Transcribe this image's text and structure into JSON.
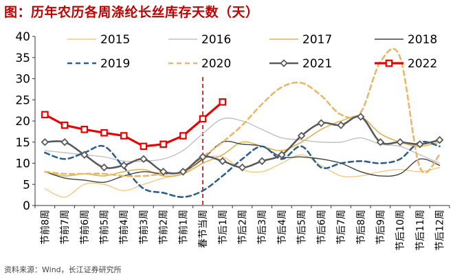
{
  "title": "图：历年农历各周涤纶长丝库存天数（天）",
  "source": "资料来源：Wind，长江证券研究所",
  "colors": {
    "2015": "#f2c982",
    "2016": "#c0c0c0",
    "2017": "#e0b24f",
    "2018": "#404040",
    "2019": "#2e5f8a",
    "2020": "#e8b768",
    "2021": "#595959",
    "2022": "#e60000",
    "marker_line": "#c00000",
    "axis": "#333333",
    "title": "#c00000"
  },
  "chart_data": {
    "type": "line",
    "title": "历年农历各周涤纶长丝库存天数（天）",
    "xlabel": "",
    "ylabel": "",
    "ylim": [
      0,
      40
    ],
    "yticks": [
      0,
      5,
      10,
      15,
      20,
      25,
      30,
      35,
      40
    ],
    "grid": false,
    "legend": "top",
    "categories": [
      "节前8周",
      "节前7周",
      "节前6周",
      "节前5周",
      "节前4周",
      "节前3周",
      "节前2周",
      "节前1周",
      "春节当周",
      "节后1周",
      "节后2周",
      "节后3周",
      "节后4周",
      "节后5周",
      "节后6周",
      "节后7周",
      "节后8周",
      "节后9周",
      "节后10周",
      "节后11周",
      "节后12周"
    ],
    "vertical_marker": {
      "category": "春节当周",
      "style": "dashed"
    },
    "series": [
      {
        "name": "2015",
        "style": "solid",
        "marker": "none",
        "values": [
          4,
          2,
          5,
          5,
          3.5,
          5,
          6.5,
          7.5,
          11,
          11.5,
          8.5,
          8,
          10,
          12,
          9.5,
          7,
          7,
          8,
          8.5,
          8,
          9
        ]
      },
      {
        "name": "2016",
        "style": "solid",
        "marker": "none",
        "values": [
          13,
          12.5,
          12,
          11.5,
          10.5,
          10.5,
          11,
          13,
          17,
          20.5,
          20,
          18,
          16,
          15.5,
          15,
          15,
          16,
          14.5,
          14,
          12,
          10
        ]
      },
      {
        "name": "2017",
        "style": "solid",
        "marker": "none",
        "values": [
          8,
          7,
          7.5,
          7,
          8,
          8.5,
          7,
          7.5,
          10,
          12,
          15,
          14,
          13,
          15,
          18,
          20,
          21,
          17,
          15,
          14,
          15
        ]
      },
      {
        "name": "2018",
        "style": "solid",
        "marker": "none",
        "values": [
          8,
          6.5,
          6,
          5.5,
          7,
          8,
          7.5,
          8,
          11,
          15,
          14.5,
          14,
          11.5,
          11.5,
          11,
          10,
          8,
          7,
          7.5,
          11,
          9.5
        ]
      },
      {
        "name": "2019",
        "style": "dashed",
        "marker": "none",
        "values": [
          12.5,
          11,
          12.5,
          14,
          9,
          4,
          3,
          2,
          3.5,
          7,
          11,
          14,
          11,
          14,
          9,
          10,
          10.5,
          10,
          11,
          15,
          14
        ]
      },
      {
        "name": "2020",
        "style": "dashed",
        "marker": "none",
        "values": [
          8,
          7.5,
          7.5,
          7.5,
          7,
          7,
          7.5,
          8,
          11.5,
          15,
          19,
          24,
          28,
          29,
          26,
          21.5,
          22,
          34,
          35,
          9,
          12
        ]
      },
      {
        "name": "2021",
        "style": "solid",
        "marker": "diamond",
        "values": [
          15,
          15,
          12,
          9,
          9.5,
          11,
          8,
          8,
          11.5,
          10.5,
          9,
          10.5,
          12,
          16.5,
          19.5,
          19,
          21,
          15,
          15,
          14.5,
          15.5
        ]
      },
      {
        "name": "2022",
        "style": "solid",
        "marker": "square",
        "values": [
          21.5,
          19,
          18,
          17.2,
          16.5,
          14,
          14.5,
          16.5,
          20.5,
          24.5,
          null,
          null,
          null,
          null,
          null,
          null,
          null,
          null,
          null,
          null,
          null
        ]
      }
    ]
  }
}
